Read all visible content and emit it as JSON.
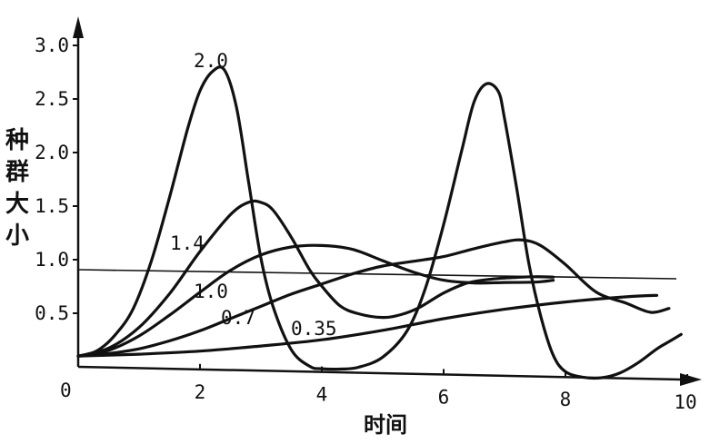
{
  "chart_data": {
    "type": "line",
    "xlabel": "时间",
    "ylabel": "种群大小",
    "x_ticks": [
      "0",
      "2",
      "4",
      "6",
      "8",
      "10"
    ],
    "y_ticks": [
      "0.5",
      "1.0",
      "1.5",
      "2.0",
      "2.5",
      "3.0"
    ],
    "xlim": [
      0,
      10
    ],
    "ylim": [
      0,
      3.0
    ],
    "grid": false,
    "reference_line": 1.0,
    "series": [
      {
        "name": "2.0",
        "x": [
          0.0,
          0.3,
          0.6,
          0.9,
          1.2,
          1.5,
          1.8,
          2.0,
          2.2,
          2.4,
          2.6,
          2.8,
          3.0,
          3.2,
          3.5,
          3.8,
          4.0,
          4.3,
          4.6,
          5.0,
          5.4,
          5.7,
          6.0,
          6.3,
          6.5,
          6.7,
          6.9,
          7.0,
          7.2,
          7.4,
          7.6,
          7.8,
          8.0,
          8.3,
          8.6,
          8.9,
          9.2,
          9.5,
          9.7,
          9.9
        ],
        "y": [
          0.1,
          0.15,
          0.3,
          0.55,
          1.0,
          1.6,
          2.25,
          2.6,
          2.78,
          2.8,
          2.45,
          1.75,
          1.05,
          0.6,
          0.2,
          0.05,
          0.03,
          0.03,
          0.05,
          0.15,
          0.4,
          0.8,
          1.4,
          2.1,
          2.55,
          2.72,
          2.65,
          2.4,
          1.75,
          1.05,
          0.55,
          0.2,
          0.05,
          0.0,
          0.0,
          0.05,
          0.15,
          0.28,
          0.35,
          0.42
        ]
      },
      {
        "name": "1.4",
        "x": [
          0.0,
          0.5,
          1.0,
          1.5,
          2.0,
          2.5,
          2.8,
          3.0,
          3.2,
          3.5,
          3.8,
          4.0,
          4.3,
          4.6,
          5.0,
          5.3,
          5.6,
          6.0,
          6.4,
          6.8,
          7.2,
          7.5,
          7.8
        ],
        "y": [
          0.1,
          0.18,
          0.38,
          0.7,
          1.1,
          1.45,
          1.57,
          1.57,
          1.5,
          1.25,
          0.95,
          0.8,
          0.62,
          0.55,
          0.52,
          0.55,
          0.62,
          0.76,
          0.86,
          0.9,
          0.92,
          0.93,
          0.93
        ]
      },
      {
        "name": "1.0",
        "x": [
          0.0,
          0.5,
          1.0,
          1.5,
          2.0,
          2.5,
          3.0,
          3.5,
          4.0,
          4.5,
          5.0,
          5.5,
          6.0,
          6.5,
          7.0,
          7.5,
          7.8
        ],
        "y": [
          0.1,
          0.16,
          0.3,
          0.5,
          0.72,
          0.93,
          1.08,
          1.16,
          1.18,
          1.15,
          1.05,
          0.95,
          0.88,
          0.86,
          0.87,
          0.88,
          0.9
        ]
      },
      {
        "name": "0.7",
        "x": [
          0.0,
          0.5,
          1.0,
          1.5,
          2.0,
          2.5,
          3.0,
          3.5,
          4.0,
          4.5,
          5.0,
          5.5,
          6.0,
          6.5,
          7.0,
          7.3,
          7.6,
          8.0,
          8.5,
          9.0,
          9.4,
          9.7
        ],
        "y": [
          0.1,
          0.13,
          0.18,
          0.26,
          0.36,
          0.48,
          0.6,
          0.72,
          0.82,
          0.92,
          1.0,
          1.05,
          1.1,
          1.18,
          1.25,
          1.27,
          1.22,
          1.05,
          0.8,
          0.7,
          0.62,
          0.66
        ]
      },
      {
        "name": "0.35",
        "x": [
          0.0,
          1.0,
          2.0,
          3.0,
          4.0,
          5.0,
          6.0,
          7.0,
          8.0,
          9.0,
          9.5
        ],
        "y": [
          0.1,
          0.13,
          0.17,
          0.23,
          0.3,
          0.4,
          0.52,
          0.62,
          0.7,
          0.76,
          0.78
        ]
      }
    ]
  }
}
